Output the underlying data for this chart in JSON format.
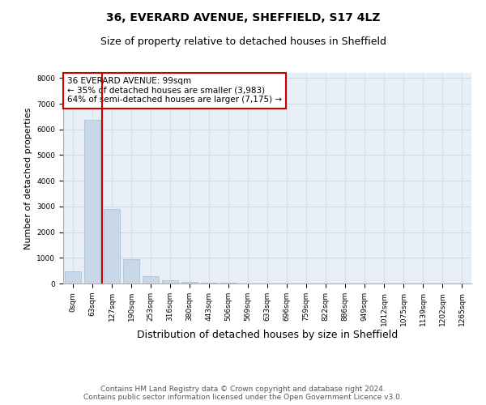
{
  "title_line1": "36, EVERARD AVENUE, SHEFFIELD, S17 4LZ",
  "title_line2": "Size of property relative to detached houses in Sheffield",
  "xlabel": "Distribution of detached houses by size in Sheffield",
  "ylabel": "Number of detached properties",
  "categories": [
    "0sqm",
    "63sqm",
    "127sqm",
    "190sqm",
    "253sqm",
    "316sqm",
    "380sqm",
    "443sqm",
    "506sqm",
    "569sqm",
    "633sqm",
    "696sqm",
    "759sqm",
    "822sqm",
    "886sqm",
    "949sqm",
    "1012sqm",
    "1075sqm",
    "1139sqm",
    "1202sqm",
    "1265sqm"
  ],
  "values": [
    480,
    6380,
    2900,
    960,
    290,
    130,
    75,
    40,
    20,
    10,
    5,
    3,
    2,
    2,
    1,
    1,
    1,
    0,
    0,
    0,
    0
  ],
  "bar_color": "#c8d8e8",
  "bar_edge_color": "#aabccc",
  "vline_color": "#cc0000",
  "annotation_text": "36 EVERARD AVENUE: 99sqm\n← 35% of detached houses are smaller (3,983)\n64% of semi-detached houses are larger (7,175) →",
  "annotation_box_edge_color": "#cc0000",
  "ylim": [
    0,
    8200
  ],
  "yticks": [
    0,
    1000,
    2000,
    3000,
    4000,
    5000,
    6000,
    7000,
    8000
  ],
  "grid_color": "#d0d8e8",
  "background_color": "#e8eef5",
  "footer_text": "Contains HM Land Registry data © Crown copyright and database right 2024.\nContains public sector information licensed under the Open Government Licence v3.0.",
  "title_fontsize": 10,
  "subtitle_fontsize": 9,
  "tick_fontsize": 6.5,
  "ylabel_fontsize": 8,
  "xlabel_fontsize": 9,
  "annotation_fontsize": 7.5,
  "footer_fontsize": 6.5
}
